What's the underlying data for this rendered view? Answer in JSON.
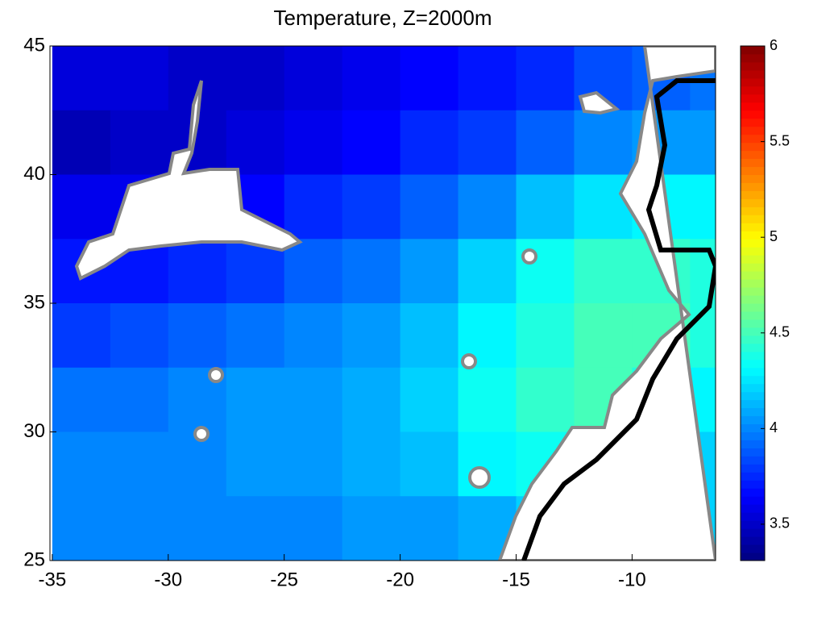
{
  "chart_data": {
    "type": "heatmap",
    "title": "Temperature, Z=2000m",
    "colormap": "jet",
    "x": [
      -33.75,
      -31.25,
      -28.75,
      -26.25,
      -23.75,
      -21.25,
      -18.75,
      -16.25,
      -13.75,
      -11.25,
      -8.75,
      -6.25
    ],
    "y": [
      43.75,
      41.25,
      38.75,
      36.25,
      33.75,
      31.25,
      28.75,
      26.25
    ],
    "z": [
      [
        3.55,
        3.55,
        3.5,
        3.5,
        3.55,
        3.6,
        3.65,
        3.7,
        3.75,
        3.85,
        3.9,
        3.95
      ],
      [
        3.45,
        3.5,
        3.5,
        3.55,
        3.6,
        3.65,
        3.75,
        3.8,
        3.9,
        4.0,
        4.05,
        4.05
      ],
      [
        3.6,
        3.6,
        3.6,
        3.65,
        3.75,
        3.8,
        3.9,
        4.0,
        4.15,
        4.25,
        4.3,
        4.3
      ],
      [
        3.7,
        3.7,
        3.75,
        3.8,
        3.9,
        3.95,
        4.05,
        4.2,
        4.35,
        4.45,
        4.45,
        4.4
      ],
      [
        3.8,
        3.85,
        3.9,
        3.95,
        4.0,
        4.05,
        4.15,
        4.3,
        4.4,
        4.5,
        4.5,
        4.4
      ],
      [
        3.95,
        3.95,
        4.0,
        4.05,
        4.05,
        4.1,
        4.2,
        4.35,
        4.45,
        4.5,
        4.4,
        4.3
      ],
      [
        4.0,
        4.0,
        4.0,
        4.05,
        4.05,
        4.1,
        4.15,
        4.3,
        4.35,
        4.3,
        4.2,
        4.2
      ],
      [
        4.0,
        4.0,
        4.0,
        4.0,
        4.0,
        4.05,
        4.05,
        4.1,
        4.2,
        4.2,
        4.2,
        4.2
      ]
    ],
    "xlim": [
      -35.1,
      -6.4
    ],
    "xticks": [
      -35,
      -30,
      -25,
      -20,
      -15,
      -10
    ],
    "ylim": [
      25,
      45
    ],
    "yticks": [
      25,
      30,
      35,
      40,
      45
    ],
    "clim": [
      3.31,
      6
    ],
    "cticks": [
      3.5,
      4,
      4.5,
      5,
      5.5,
      6
    ]
  }
}
